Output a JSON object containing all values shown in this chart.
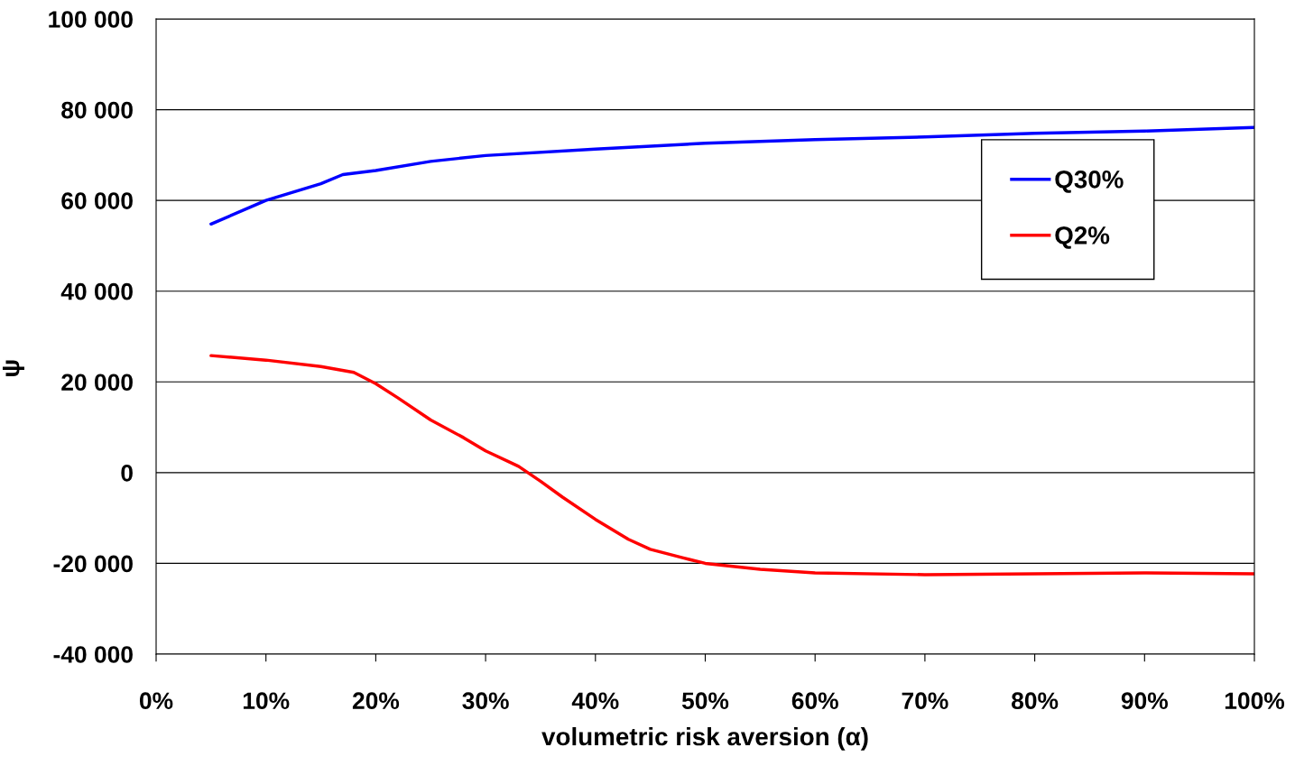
{
  "chart_data": {
    "type": "line",
    "xlabel": "volumetric risk aversion (α)",
    "ylabel": "ψ",
    "xlim": [
      0,
      100
    ],
    "xticks": [
      {
        "value": 0,
        "label": "0%"
      },
      {
        "value": 10,
        "label": "10%"
      },
      {
        "value": 20,
        "label": "20%"
      },
      {
        "value": 30,
        "label": "30%"
      },
      {
        "value": 40,
        "label": "40%"
      },
      {
        "value": 50,
        "label": "50%"
      },
      {
        "value": 60,
        "label": "60%"
      },
      {
        "value": 70,
        "label": "70%"
      },
      {
        "value": 80,
        "label": "80%"
      },
      {
        "value": 90,
        "label": "90%"
      },
      {
        "value": 100,
        "label": "100%"
      }
    ],
    "ylim": [
      -40000,
      100000
    ],
    "yticks": [
      {
        "value": -40000,
        "label": "-40 000"
      },
      {
        "value": -20000,
        "label": "-20 000"
      },
      {
        "value": 0,
        "label": "0"
      },
      {
        "value": 20000,
        "label": "20 000"
      },
      {
        "value": 40000,
        "label": "40 000"
      },
      {
        "value": 60000,
        "label": "60 000"
      },
      {
        "value": 80000,
        "label": "80 000"
      },
      {
        "value": 100000,
        "label": "100 000"
      }
    ],
    "grid": "y",
    "legend": "right",
    "marker": "none",
    "line_style": "solid",
    "series": [
      {
        "name": "Q30%",
        "color": "#0000ff",
        "x": [
          5,
          10,
          15,
          17,
          20,
          25,
          30,
          40,
          50,
          60,
          70,
          80,
          90,
          100
        ],
        "values": [
          54800,
          60000,
          63700,
          65700,
          66600,
          68600,
          69900,
          71300,
          72600,
          73400,
          74000,
          74800,
          75300,
          76100
        ]
      },
      {
        "name": "Q2%",
        "color": "#ff0000",
        "x": [
          5,
          10,
          15,
          18,
          20,
          22,
          25,
          28,
          30,
          33,
          35,
          37,
          40,
          43,
          45,
          48,
          50,
          55,
          60,
          70,
          80,
          90,
          100
        ],
        "values": [
          25800,
          24800,
          23400,
          22100,
          19600,
          16500,
          11600,
          7700,
          4800,
          1400,
          -1900,
          -5400,
          -10300,
          -14700,
          -16900,
          -18800,
          -20000,
          -21300,
          -22100,
          -22500,
          -22300,
          -22100,
          -22300
        ]
      }
    ]
  }
}
